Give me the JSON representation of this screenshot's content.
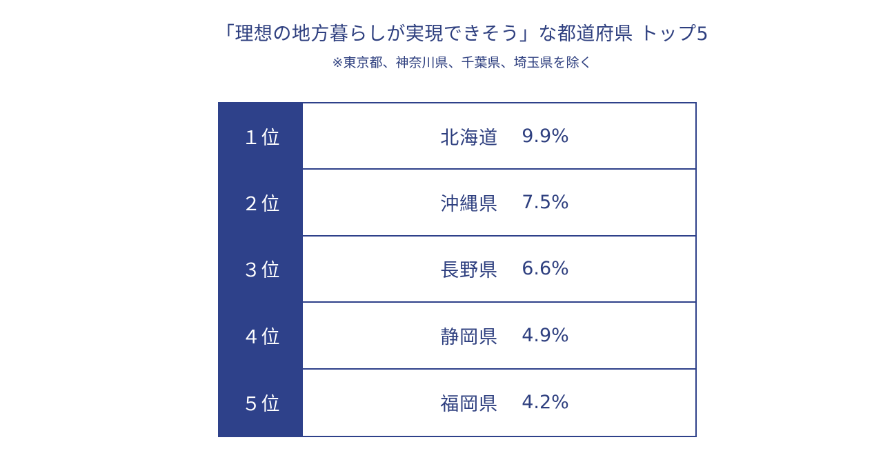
{
  "title": "「理想の地方暮らしが実現できそう」な都道府県 トップ5",
  "subtitle": "※東京都、神奈川県、千葉県、埼玉県を除く",
  "chart_data": {
    "type": "table",
    "title": "「理想の地方暮らしが実現できそう」な都道府県 トップ5",
    "subtitle": "※東京都、神奈川県、千葉県、埼玉県を除く",
    "rows": [
      {
        "rank": "１位",
        "prefecture": "北海道",
        "value_label": "9.9%",
        "value": 9.9
      },
      {
        "rank": "２位",
        "prefecture": "沖縄県",
        "value_label": "7.5%",
        "value": 7.5
      },
      {
        "rank": "３位",
        "prefecture": "長野県",
        "value_label": "6.6%",
        "value": 6.6
      },
      {
        "rank": "４位",
        "prefecture": "静岡県",
        "value_label": "4.9%",
        "value": 4.9
      },
      {
        "rank": "５位",
        "prefecture": "福岡県",
        "value_label": "4.2%",
        "value": 4.2
      }
    ],
    "colors": {
      "header_fill": "#2e418a",
      "text": "#2e3f7f",
      "border": "#2e418a"
    }
  }
}
